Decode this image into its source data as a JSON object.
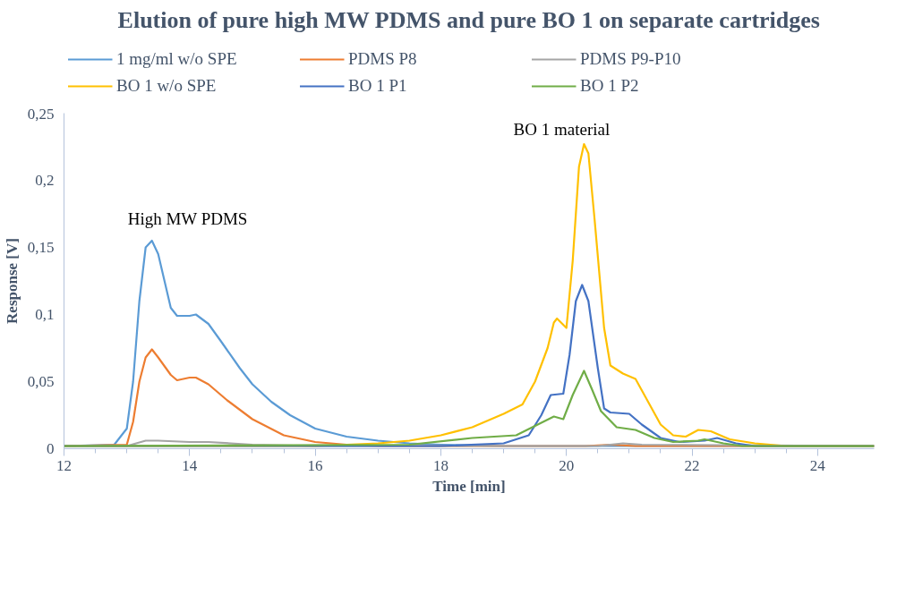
{
  "chart_data": {
    "type": "line",
    "title": "Elution of pure high MW PDMS and pure BO 1 on separate cartridges",
    "xlabel": "Time [min]",
    "ylabel": "Response [V]",
    "xlim": [
      12,
      24.9
    ],
    "xticks": [
      12,
      14,
      16,
      18,
      20,
      22,
      24
    ],
    "ylim": [
      0,
      0.25
    ],
    "yticks": [
      {
        "value": 0,
        "label": "0"
      },
      {
        "value": 0.05,
        "label": "0,05"
      },
      {
        "value": 0.1,
        "label": "0,1"
      },
      {
        "value": 0.15,
        "label": "0,15"
      },
      {
        "value": 0.2,
        "label": "0,2"
      },
      {
        "value": 0.25,
        "label": "0,25"
      }
    ],
    "grid": false,
    "legend": "top",
    "marker": "none",
    "line_style": "solid",
    "annotations": [
      {
        "text": "High MW PDMS",
        "x": 13.4,
        "y": 0.155
      },
      {
        "text": "BO 1 material",
        "x": 20.28,
        "y": 0.227
      }
    ],
    "series": [
      {
        "name": "1 mg/ml w/o SPE",
        "color": "#5b9bd5",
        "x": [
          12,
          12.8,
          13.0,
          13.1,
          13.2,
          13.3,
          13.4,
          13.5,
          13.6,
          13.7,
          13.8,
          14.0,
          14.1,
          14.3,
          14.5,
          14.8,
          15.0,
          15.3,
          15.6,
          16.0,
          16.5,
          17.0,
          17.5,
          18,
          19,
          24.9
        ],
        "values": [
          0.002,
          0.003,
          0.015,
          0.05,
          0.11,
          0.15,
          0.155,
          0.145,
          0.125,
          0.105,
          0.099,
          0.099,
          0.1,
          0.093,
          0.08,
          0.06,
          0.048,
          0.035,
          0.025,
          0.015,
          0.009,
          0.006,
          0.004,
          0.003,
          0.002,
          0.002
        ]
      },
      {
        "name": "PDMS P8",
        "color": "#ed7d31",
        "x": [
          12,
          13.0,
          13.1,
          13.2,
          13.3,
          13.4,
          13.5,
          13.7,
          13.8,
          14.0,
          14.1,
          14.3,
          14.6,
          15.0,
          15.5,
          16.0,
          16.5,
          17.0,
          20.3,
          20.7,
          21.1,
          24.9
        ],
        "values": [
          0.002,
          0.003,
          0.02,
          0.05,
          0.068,
          0.074,
          0.068,
          0.055,
          0.051,
          0.053,
          0.053,
          0.048,
          0.036,
          0.022,
          0.01,
          0.005,
          0.003,
          0.002,
          0.002,
          0.003,
          0.002,
          0.002
        ]
      },
      {
        "name": "PDMS P9-P10",
        "color": "#a5a5a5",
        "x": [
          12,
          13.0,
          13.3,
          13.5,
          14.0,
          14.3,
          15.0,
          16.0,
          20.5,
          20.9,
          21.2,
          24.9
        ],
        "values": [
          0.002,
          0.002,
          0.006,
          0.006,
          0.005,
          0.005,
          0.003,
          0.002,
          0.002,
          0.004,
          0.003,
          0.002
        ]
      },
      {
        "name": "BO 1 w/o SPE",
        "color": "#ffc000",
        "x": [
          12,
          16,
          17,
          17.5,
          18,
          18.5,
          19,
          19.3,
          19.5,
          19.7,
          19.8,
          19.85,
          20,
          20.1,
          20.2,
          20.28,
          20.35,
          20.45,
          20.6,
          20.7,
          20.9,
          21.1,
          21.3,
          21.5,
          21.7,
          21.9,
          22.1,
          22.3,
          22.6,
          23,
          23.5,
          24.9
        ],
        "values": [
          0.002,
          0.002,
          0.004,
          0.006,
          0.01,
          0.016,
          0.026,
          0.033,
          0.05,
          0.075,
          0.094,
          0.097,
          0.09,
          0.14,
          0.21,
          0.227,
          0.22,
          0.17,
          0.09,
          0.062,
          0.056,
          0.052,
          0.035,
          0.018,
          0.01,
          0.009,
          0.014,
          0.013,
          0.007,
          0.004,
          0.002,
          0.002
        ]
      },
      {
        "name": "BO 1 P1",
        "color": "#4472c4",
        "x": [
          12,
          18,
          19,
          19.4,
          19.6,
          19.75,
          19.95,
          20.05,
          20.15,
          20.25,
          20.35,
          20.5,
          20.6,
          20.7,
          21,
          21.2,
          21.5,
          21.8,
          22.2,
          22.4,
          22.7,
          23,
          24.9
        ],
        "values": [
          0.002,
          0.002,
          0.004,
          0.01,
          0.025,
          0.04,
          0.041,
          0.07,
          0.11,
          0.122,
          0.11,
          0.06,
          0.03,
          0.027,
          0.026,
          0.018,
          0.008,
          0.005,
          0.006,
          0.008,
          0.004,
          0.002,
          0.002
        ]
      },
      {
        "name": "BO 1 P2",
        "color": "#70ad47",
        "x": [
          12,
          17.5,
          18.5,
          19.2,
          19.5,
          19.8,
          19.95,
          20.1,
          20.28,
          20.4,
          20.55,
          20.8,
          21.1,
          21.4,
          21.7,
          22.1,
          22.2,
          22.5,
          22.8,
          24.9
        ],
        "values": [
          0.002,
          0.003,
          0.008,
          0.01,
          0.017,
          0.024,
          0.022,
          0.04,
          0.058,
          0.045,
          0.028,
          0.016,
          0.014,
          0.008,
          0.005,
          0.006,
          0.007,
          0.004,
          0.002,
          0.002
        ]
      }
    ]
  }
}
